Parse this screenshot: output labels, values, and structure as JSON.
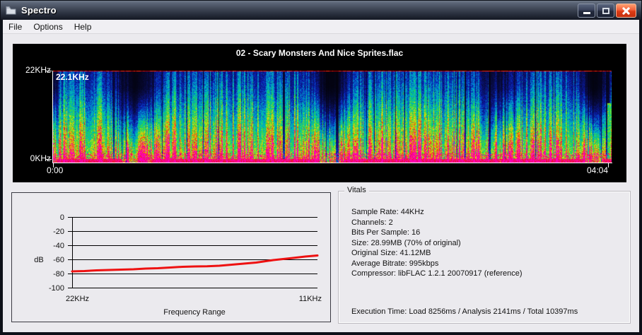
{
  "window": {
    "title": "Spectro"
  },
  "menu": {
    "items": [
      {
        "label": "File"
      },
      {
        "label": "Options"
      },
      {
        "label": "Help"
      }
    ]
  },
  "spectrogram": {
    "title": "02 - Scary Monsters And Nice Sprites.flac",
    "freq_axis_top": "22KHz",
    "freq_axis_bottom": "0KHz",
    "cutoff_label": "22.1KHz",
    "time_start": "0:00",
    "time_end": "04:04"
  },
  "chart_data": {
    "type": "line",
    "ylabel": "dB",
    "xlabel": "Frequency Range",
    "x_start_label": "22KHz",
    "x_end_label": "11KHz",
    "yticks": [
      0,
      -20,
      -40,
      -60,
      -80,
      -100
    ],
    "ylim": [
      -100,
      0
    ],
    "grid": true,
    "series": [
      {
        "name": "average dB vs frequency",
        "color": "#ee1111",
        "x_fraction": [
          0,
          0.05,
          0.1,
          0.15,
          0.2,
          0.25,
          0.3,
          0.35,
          0.4,
          0.45,
          0.5,
          0.55,
          0.6,
          0.65,
          0.7,
          0.75,
          0.78,
          0.82,
          0.86,
          0.9,
          0.95,
          1.0
        ],
        "values": [
          -77,
          -76.5,
          -75.5,
          -75,
          -74.5,
          -74,
          -73,
          -72.5,
          -71.5,
          -70.5,
          -70,
          -69.8,
          -69,
          -67.5,
          -66,
          -64.5,
          -63,
          -61,
          -59.5,
          -58,
          -56,
          -54.5
        ]
      }
    ]
  },
  "vitals": {
    "title": "Vitals",
    "lines": [
      "Sample Rate: 44KHz",
      "Channels: 2",
      "Bits Per Sample: 16",
      "Size: 28.99MB (70% of original)",
      "Original Size: 41.12MB",
      "Average Bitrate: 995kbps",
      "Compressor: libFLAC 1.2.1 20070917 (reference)"
    ],
    "execution_time": "Execution Time: Load 8256ms / Analysis 2141ms / Total 10397ms"
  },
  "colors": {
    "spectrogram_cutoff": "#ff0000",
    "chart_line": "#ee1111",
    "close_button": "#e8502c"
  }
}
